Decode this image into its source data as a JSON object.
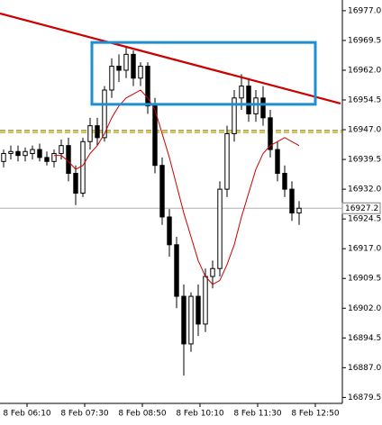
{
  "chart_data": {
    "type": "candlestick",
    "up_color": "#ffffff",
    "down_color": "#000000",
    "open": [
      16939,
      16941,
      16941.5,
      16940.5,
      16941,
      16942,
      16940,
      16939,
      16941,
      16943,
      16936,
      16931,
      16944,
      16948,
      16945,
      16957,
      16963,
      16962,
      16966,
      16960,
      16963,
      16953,
      16938,
      16925,
      16918,
      16905,
      16893,
      16905,
      16898,
      16910,
      16912,
      16932,
      16946,
      16955,
      16958,
      16951,
      16955,
      16950,
      16942,
      16936,
      16932,
      16926
    ],
    "high": [
      16942,
      16943,
      16943,
      16942.5,
      16943,
      16943.5,
      16941.5,
      16942,
      16944.5,
      16945,
      16938,
      16945,
      16950,
      16950,
      16958,
      16965,
      16966,
      16968,
      16967,
      16964,
      16964,
      16955,
      16940,
      16927,
      16920,
      16908,
      16906,
      16908,
      16912,
      16914,
      16934,
      16948,
      16957,
      16961,
      16960,
      16957,
      16958,
      16952,
      16944,
      16938,
      16934,
      16929
    ],
    "low": [
      16937.5,
      16939.5,
      16939,
      16939,
      16939.5,
      16939,
      16938,
      16937.5,
      16939.5,
      16934,
      16928,
      16930,
      16942,
      16943,
      16944,
      16955,
      16959,
      16960,
      16958,
      16958,
      16951,
      16936,
      16923,
      16915,
      16902,
      16885,
      16891,
      16895,
      16896,
      16907,
      16910,
      16930,
      16944,
      16952,
      16949,
      16949,
      16948,
      16940,
      16934,
      16930,
      16924,
      16923
    ],
    "close": [
      16941,
      16941.5,
      16940.5,
      16941.5,
      16942,
      16940,
      16939,
      16941,
      16943,
      16936,
      16931,
      16944,
      16948,
      16945,
      16957,
      16963,
      16962,
      16966,
      16960,
      16963,
      16953,
      16938,
      16925,
      16918,
      16905,
      16893,
      16905,
      16898,
      16910,
      16912,
      16932,
      16946,
      16955,
      16958,
      16951,
      16955,
      16950,
      16942,
      16936,
      16932,
      16926,
      16927.2
    ],
    "ma": {
      "color": "#cc0000",
      "values": [
        null,
        null,
        null,
        null,
        null,
        null,
        null,
        16940.5,
        16940.5,
        16939,
        16937,
        16938,
        16941,
        16943,
        16946,
        16950,
        16953,
        16955,
        16956,
        16957,
        16955,
        16952,
        16946,
        16940,
        16933,
        16926,
        16920,
        16914,
        16910,
        16908,
        16909,
        16913,
        16918,
        16925,
        16931,
        16937,
        16941,
        16943,
        16944,
        16945,
        16944,
        16943
      ]
    },
    "xlim": [
      -0.5,
      47
    ],
    "ylim": [
      16878,
      16979.7
    ],
    "xticks": [
      {
        "value": 3.25,
        "label": "8 Feb 06:10"
      },
      {
        "value": 11.25,
        "label": "8 Feb 07:30"
      },
      {
        "value": 19.25,
        "label": "8 Feb 08:50"
      },
      {
        "value": 27.25,
        "label": "8 Feb 10:10"
      },
      {
        "value": 35.25,
        "label": "8 Feb 11:30"
      },
      {
        "value": 43.25,
        "label": "8 Feb 12:50"
      }
    ],
    "yticks": [
      {
        "value": 16977,
        "label": "16977.0"
      },
      {
        "value": 16969.5,
        "label": "16969.5"
      },
      {
        "value": 16962,
        "label": "16962.0"
      },
      {
        "value": 16954.5,
        "label": "16954.5"
      },
      {
        "value": 16947,
        "label": "16947.0"
      },
      {
        "value": 16939.5,
        "label": "16939.5"
      },
      {
        "value": 16932,
        "label": "16932.0"
      },
      {
        "value": 16924.5,
        "label": "16924.5"
      },
      {
        "value": 16917,
        "label": "16917.0"
      },
      {
        "value": 16909.5,
        "label": "16909.5"
      },
      {
        "value": 16902,
        "label": "16902.0"
      },
      {
        "value": 16894.5,
        "label": "16894.5"
      },
      {
        "value": 16887,
        "label": "16887.0"
      },
      {
        "value": 16879.5,
        "label": "16879.5"
      }
    ],
    "last_price": 16927.2,
    "trend_line": {
      "color": "#cc0000",
      "x": [
        -0.5,
        46.75
      ],
      "y": [
        16976.3,
        16953.6
      ]
    },
    "box": {
      "color": "#1e90d0",
      "x": [
        12.25,
        43.25
      ],
      "y": [
        16969,
        16953.4
      ]
    },
    "levels": [
      {
        "value": 16946.8,
        "color": "#7a7a00"
      },
      {
        "value": 16946.3,
        "color": "#c8a000"
      }
    ]
  }
}
